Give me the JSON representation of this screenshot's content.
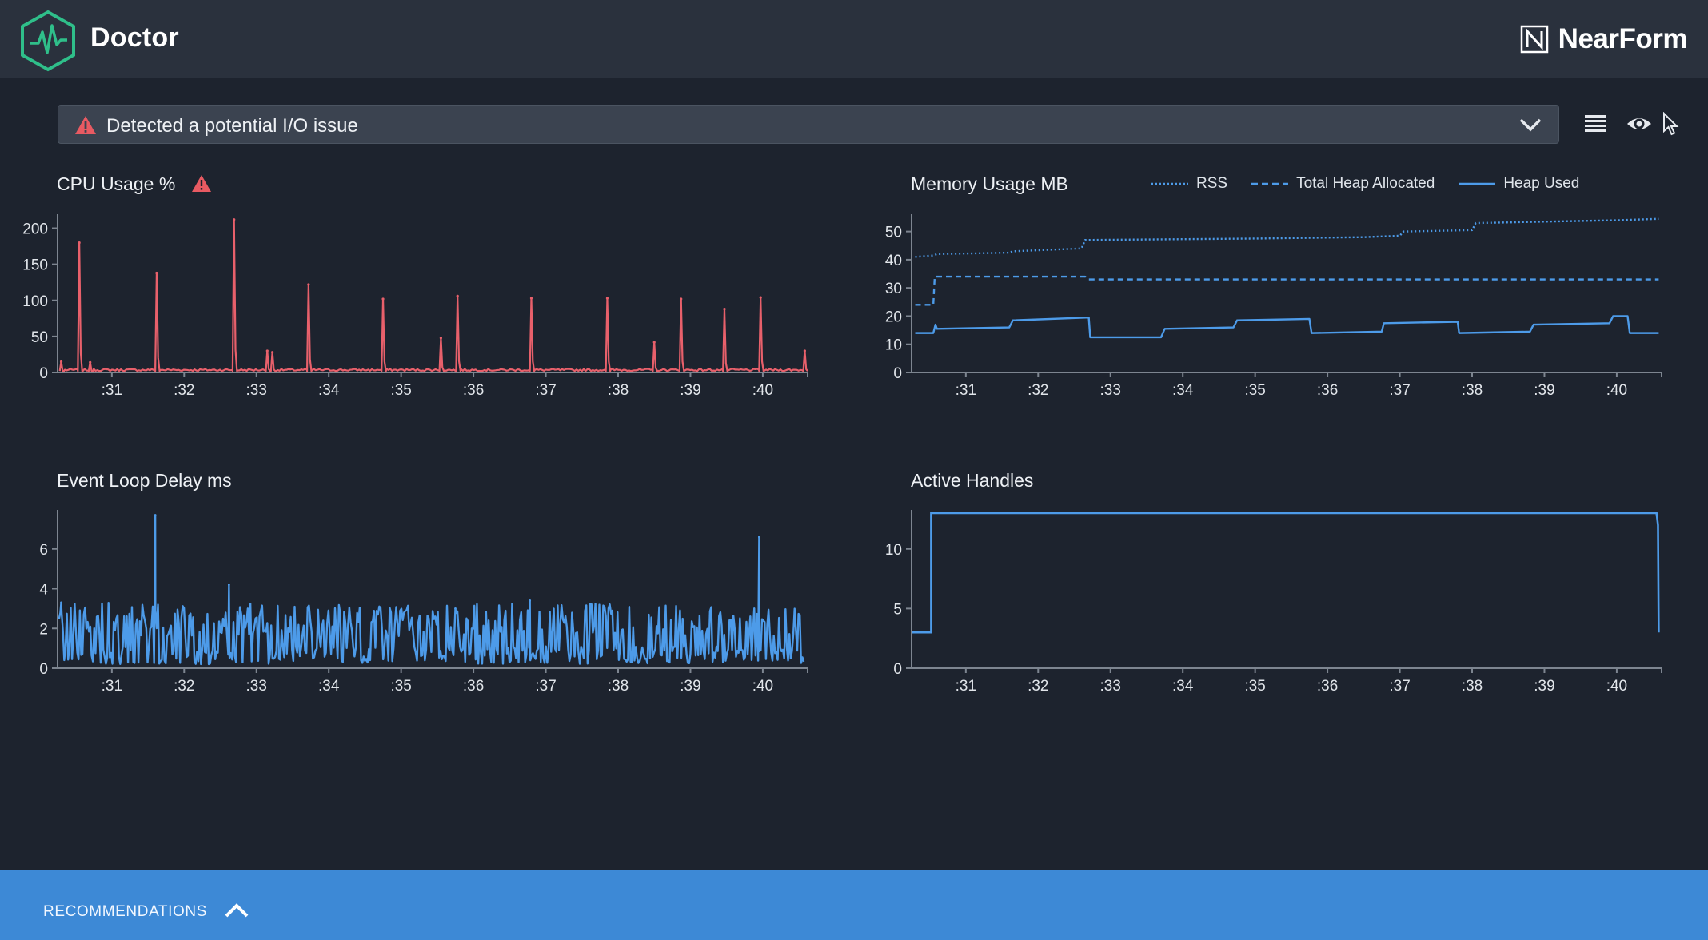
{
  "header": {
    "app_title": "Doctor",
    "brand_name": "NearForm",
    "logo_icon": "heartbeat-hexagon-icon",
    "brand_icon": "nearform-n-icon"
  },
  "alert": {
    "text": "Detected a potential I/O issue",
    "icon": "warning-triangle-icon",
    "toggle_icon": "chevron-down-icon"
  },
  "toolbar": {
    "icons": [
      "list-view-icon",
      "eye-icon",
      "pointer-icon"
    ]
  },
  "colors": {
    "background": "#1d232e",
    "header": "#2a313d",
    "cpu_line": "#e8606b",
    "series_blue": "#4d9be9",
    "warning": "#e85a62",
    "recommendations_bar": "#3d89d6"
  },
  "panels": {
    "cpu": {
      "title": "CPU Usage %",
      "warning_icon": "warning-triangle-icon"
    },
    "memory": {
      "title": "Memory Usage MB"
    },
    "event_loop": {
      "title": "Event Loop Delay ms"
    },
    "handles": {
      "title": "Active Handles"
    }
  },
  "legend": {
    "rss": "RSS",
    "heap_total": "Total Heap Allocated",
    "heap_used": "Heap Used"
  },
  "footer": {
    "label": "RECOMMENDATIONS",
    "toggle_icon": "chevron-up-icon"
  },
  "chart_data": [
    {
      "id": "cpu",
      "type": "line",
      "title": "CPU Usage %",
      "x_tick_labels": [
        ":31",
        ":32",
        ":33",
        ":34",
        ":35",
        ":36",
        ":37",
        ":38",
        ":39",
        ":40"
      ],
      "xlim": [
        30.25,
        40.62
      ],
      "y_ticks": [
        0,
        50,
        100,
        150,
        200
      ],
      "ylim": [
        0,
        215
      ],
      "baseline": 2,
      "spikes": [
        {
          "x": 30.3,
          "y": 15
        },
        {
          "x": 30.55,
          "y": 180
        },
        {
          "x": 30.7,
          "y": 14
        },
        {
          "x": 31.62,
          "y": 138
        },
        {
          "x": 32.69,
          "y": 212
        },
        {
          "x": 33.15,
          "y": 30
        },
        {
          "x": 33.22,
          "y": 28
        },
        {
          "x": 33.72,
          "y": 122
        },
        {
          "x": 34.75,
          "y": 102
        },
        {
          "x": 35.55,
          "y": 48
        },
        {
          "x": 35.78,
          "y": 106
        },
        {
          "x": 36.8,
          "y": 103
        },
        {
          "x": 37.85,
          "y": 103
        },
        {
          "x": 38.5,
          "y": 42
        },
        {
          "x": 38.87,
          "y": 102
        },
        {
          "x": 39.47,
          "y": 88
        },
        {
          "x": 39.97,
          "y": 104
        },
        {
          "x": 40.58,
          "y": 30
        }
      ]
    },
    {
      "id": "memory",
      "type": "line",
      "title": "Memory Usage MB",
      "x_tick_labels": [
        ":31",
        ":32",
        ":33",
        ":34",
        ":35",
        ":36",
        ":37",
        ":38",
        ":39",
        ":40"
      ],
      "xlim": [
        30.25,
        40.62
      ],
      "y_ticks": [
        0,
        10,
        20,
        30,
        40,
        50
      ],
      "ylim": [
        0,
        55
      ],
      "series": [
        {
          "name": "RSS",
          "style": "dotted",
          "points": [
            [
              30.3,
              41
            ],
            [
              30.55,
              41.5
            ],
            [
              30.6,
              42
            ],
            [
              31.6,
              42.5
            ],
            [
              31.65,
              43
            ],
            [
              32.6,
              44
            ],
            [
              32.65,
              47
            ],
            [
              35.0,
              47.5
            ],
            [
              36.5,
              48
            ],
            [
              37.0,
              48.5
            ],
            [
              37.05,
              50
            ],
            [
              38.0,
              50.5
            ],
            [
              38.05,
              53
            ],
            [
              39.0,
              53.5
            ],
            [
              40.0,
              54
            ],
            [
              40.58,
              54.5
            ]
          ]
        },
        {
          "name": "Total Heap Allocated",
          "style": "dashed",
          "points": [
            [
              30.3,
              24
            ],
            [
              30.55,
              24
            ],
            [
              30.57,
              34
            ],
            [
              32.65,
              34
            ],
            [
              32.7,
              33
            ],
            [
              40.58,
              33
            ]
          ]
        },
        {
          "name": "Heap Used",
          "style": "solid",
          "points": [
            [
              30.3,
              14
            ],
            [
              30.55,
              14
            ],
            [
              30.58,
              17
            ],
            [
              30.6,
              15.5
            ],
            [
              31.6,
              16
            ],
            [
              31.65,
              18.5
            ],
            [
              32.7,
              19.5
            ],
            [
              32.72,
              12.5
            ],
            [
              33.7,
              12.5
            ],
            [
              33.75,
              15.5
            ],
            [
              34.7,
              16
            ],
            [
              34.75,
              18.5
            ],
            [
              35.75,
              19
            ],
            [
              35.78,
              14
            ],
            [
              36.75,
              14.5
            ],
            [
              36.78,
              17.5
            ],
            [
              37.8,
              18
            ],
            [
              37.82,
              14
            ],
            [
              38.8,
              14.5
            ],
            [
              38.85,
              17
            ],
            [
              39.9,
              17.5
            ],
            [
              39.95,
              20
            ],
            [
              40.15,
              20
            ],
            [
              40.18,
              14
            ],
            [
              40.58,
              14
            ]
          ]
        }
      ]
    },
    {
      "id": "event_loop",
      "type": "line",
      "title": "Event Loop Delay ms",
      "x_tick_labels": [
        ":31",
        ":32",
        ":33",
        ":34",
        ":35",
        ":36",
        ":37",
        ":38",
        ":39",
        ":40"
      ],
      "xlim": [
        30.25,
        40.62
      ],
      "y_ticks": [
        0,
        2,
        4,
        6
      ],
      "ylim": [
        0,
        7.8
      ],
      "noise_range": [
        0.2,
        3.3
      ],
      "spikes": [
        {
          "x": 30.3,
          "y": 3.3
        },
        {
          "x": 31.6,
          "y": 7.7
        },
        {
          "x": 32.62,
          "y": 4.2
        },
        {
          "x": 35.75,
          "y": 3.0
        },
        {
          "x": 36.78,
          "y": 3.4
        },
        {
          "x": 39.95,
          "y": 6.6
        }
      ]
    },
    {
      "id": "handles",
      "type": "line",
      "title": "Active Handles",
      "x_tick_labels": [
        ":31",
        ":32",
        ":33",
        ":34",
        ":35",
        ":36",
        ":37",
        ":38",
        ":39",
        ":40"
      ],
      "xlim": [
        30.25,
        40.62
      ],
      "y_ticks": [
        0,
        5,
        10
      ],
      "ylim": [
        0,
        13
      ],
      "points": [
        [
          30.25,
          3
        ],
        [
          30.52,
          3
        ],
        [
          30.52,
          13
        ],
        [
          40.55,
          13
        ],
        [
          40.57,
          12
        ],
        [
          40.58,
          3
        ]
      ]
    }
  ]
}
